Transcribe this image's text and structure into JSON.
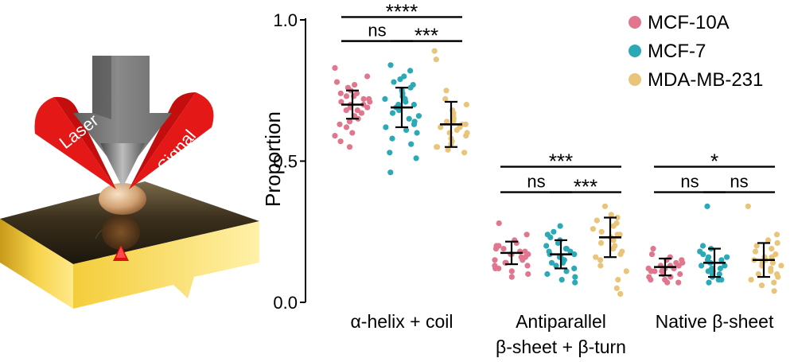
{
  "illustration": {
    "laser_label": "Laser",
    "signal_label": "Signal"
  },
  "chart_data": {
    "type": "scatter",
    "subtype": "dot-strip with mean and standard deviation bars",
    "ylabel": "Proportion",
    "ylim": [
      0.0,
      1.0
    ],
    "yticks": [
      0.0,
      0.5,
      1.0
    ],
    "ytick_labels": [
      "0.0",
      "0.5",
      "1.0"
    ],
    "grid": false,
    "legend_position": "top-right",
    "categories": [
      {
        "key": "helix",
        "lines": [
          "α-helix + coil"
        ]
      },
      {
        "key": "anti",
        "lines": [
          "Antiparallel",
          "β-sheet + β-turn"
        ]
      },
      {
        "key": "native",
        "lines": [
          "Native β-sheet"
        ]
      }
    ],
    "series": [
      {
        "name": "MCF-10A",
        "color": "#e0778f",
        "stats": {
          "helix": [
            0.7,
            0.05
          ],
          "anti": [
            0.175,
            0.04
          ],
          "native": [
            0.125,
            0.03
          ]
        },
        "points": {
          "helix": [
            0.83,
            0.8,
            0.78,
            0.77,
            0.76,
            0.75,
            0.74,
            0.74,
            0.73,
            0.73,
            0.72,
            0.72,
            0.71,
            0.71,
            0.7,
            0.7,
            0.69,
            0.69,
            0.68,
            0.68,
            0.67,
            0.66,
            0.65,
            0.64,
            0.63,
            0.62,
            0.6,
            0.59,
            0.57,
            0.55
          ],
          "anti": [
            0.28,
            0.24,
            0.22,
            0.21,
            0.2,
            0.2,
            0.19,
            0.19,
            0.18,
            0.18,
            0.17,
            0.17,
            0.17,
            0.16,
            0.16,
            0.15,
            0.15,
            0.14,
            0.14,
            0.13,
            0.13,
            0.12,
            0.12,
            0.11,
            0.1,
            0.09
          ],
          "native": [
            0.19,
            0.17,
            0.16,
            0.15,
            0.15,
            0.14,
            0.14,
            0.13,
            0.13,
            0.13,
            0.12,
            0.12,
            0.12,
            0.11,
            0.11,
            0.11,
            0.1,
            0.1,
            0.09,
            0.09,
            0.08,
            0.08,
            0.07,
            0.07
          ]
        }
      },
      {
        "name": "MCF-7",
        "color": "#2ca9b7",
        "stats": {
          "helix": [
            0.69,
            0.07
          ],
          "anti": [
            0.17,
            0.05
          ],
          "native": [
            0.14,
            0.05
          ]
        },
        "points": {
          "helix": [
            0.84,
            0.82,
            0.8,
            0.79,
            0.78,
            0.77,
            0.76,
            0.75,
            0.74,
            0.73,
            0.72,
            0.72,
            0.71,
            0.7,
            0.7,
            0.69,
            0.68,
            0.67,
            0.66,
            0.65,
            0.64,
            0.63,
            0.62,
            0.61,
            0.6,
            0.58,
            0.56,
            0.53,
            0.51,
            0.46
          ],
          "anti": [
            0.27,
            0.25,
            0.24,
            0.23,
            0.22,
            0.21,
            0.2,
            0.19,
            0.19,
            0.18,
            0.18,
            0.17,
            0.17,
            0.16,
            0.16,
            0.15,
            0.14,
            0.14,
            0.13,
            0.12,
            0.11,
            0.1,
            0.09,
            0.08,
            0.07
          ],
          "native": [
            0.34,
            0.2,
            0.19,
            0.18,
            0.17,
            0.16,
            0.16,
            0.15,
            0.15,
            0.14,
            0.14,
            0.13,
            0.13,
            0.12,
            0.12,
            0.11,
            0.11,
            0.1,
            0.1,
            0.09,
            0.08,
            0.08,
            0.07
          ]
        }
      },
      {
        "name": "MDA-MB-231",
        "color": "#e8c57a",
        "stats": {
          "helix": [
            0.63,
            0.08
          ],
          "anti": [
            0.23,
            0.07
          ],
          "native": [
            0.15,
            0.06
          ]
        },
        "points": {
          "helix": [
            0.89,
            0.86,
            0.75,
            0.72,
            0.7,
            0.68,
            0.67,
            0.66,
            0.65,
            0.64,
            0.64,
            0.63,
            0.63,
            0.62,
            0.62,
            0.61,
            0.6,
            0.6,
            0.59,
            0.58,
            0.57,
            0.56,
            0.55,
            0.55,
            0.54,
            0.53
          ],
          "anti": [
            0.34,
            0.31,
            0.3,
            0.29,
            0.28,
            0.27,
            0.26,
            0.25,
            0.24,
            0.24,
            0.23,
            0.22,
            0.21,
            0.2,
            0.19,
            0.18,
            0.17,
            0.16,
            0.15,
            0.13,
            0.11,
            0.08,
            0.05,
            0.03
          ],
          "native": [
            0.34,
            0.24,
            0.22,
            0.21,
            0.2,
            0.19,
            0.18,
            0.17,
            0.16,
            0.16,
            0.15,
            0.15,
            0.14,
            0.14,
            0.13,
            0.13,
            0.12,
            0.11,
            0.1,
            0.1,
            0.09,
            0.08,
            0.07,
            0.06,
            0.04
          ]
        }
      }
    ],
    "significance": [
      {
        "category": "helix",
        "from": 0,
        "to": 2,
        "label": "****",
        "level": 1.01
      },
      {
        "category": "helix",
        "from": 0,
        "to": 1,
        "label": "ns",
        "level": 0.925
      },
      {
        "category": "helix",
        "from": 1,
        "to": 2,
        "label": "***",
        "level": 0.925
      },
      {
        "category": "anti",
        "from": 0,
        "to": 2,
        "label": "***",
        "level": 0.48
      },
      {
        "category": "anti",
        "from": 0,
        "to": 1,
        "label": "ns",
        "level": 0.39
      },
      {
        "category": "anti",
        "from": 1,
        "to": 2,
        "label": "***",
        "level": 0.39
      },
      {
        "category": "native",
        "from": 0,
        "to": 2,
        "label": "*",
        "level": 0.48
      },
      {
        "category": "native",
        "from": 0,
        "to": 1,
        "label": "ns",
        "level": 0.39
      },
      {
        "category": "native",
        "from": 1,
        "to": 2,
        "label": "ns",
        "level": 0.39
      }
    ]
  }
}
